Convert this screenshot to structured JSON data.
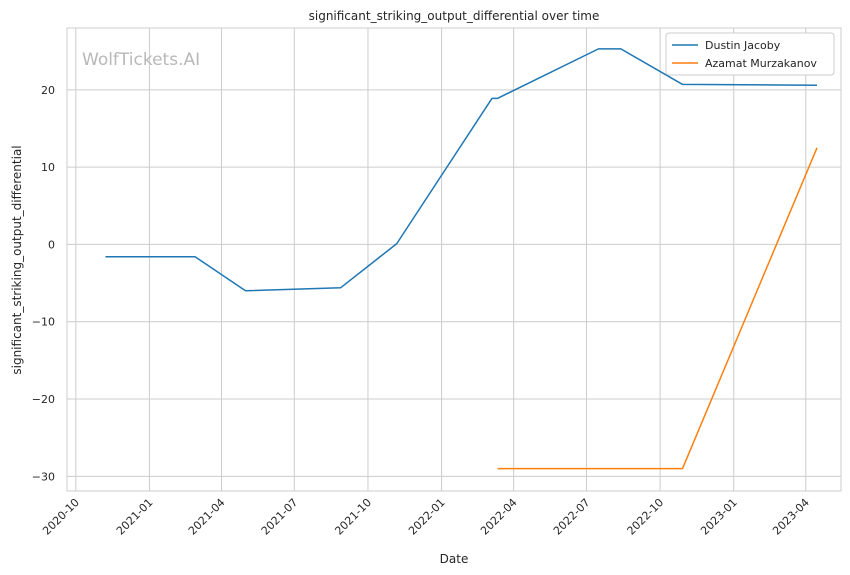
{
  "chart_data": {
    "type": "line",
    "title": "significant_striking_output_differential over time",
    "xlabel": "Date",
    "ylabel": "significant_striking_output_differential",
    "watermark": "WolfTickets.AI",
    "x_ticks": [
      "2020-10",
      "2021-01",
      "2021-04",
      "2021-07",
      "2021-10",
      "2022-01",
      "2022-04",
      "2022-07",
      "2022-10",
      "2023-01",
      "2023-04"
    ],
    "y_ticks": [
      -30,
      -20,
      -10,
      0,
      10,
      20
    ],
    "y_tick_labels": [
      "−30",
      "−20",
      "−10",
      "0",
      "10",
      "20"
    ],
    "xlim": [
      "2020-09-20",
      "2023-05-15"
    ],
    "ylim": [
      -31.9,
      28
    ],
    "grid": true,
    "legend_position": "top-right",
    "series": [
      {
        "name": "Dustin Jacoby",
        "color": "#1f77b4",
        "points": [
          [
            "2020-11-07",
            -1.6
          ],
          [
            "2021-02-27",
            -1.6
          ],
          [
            "2021-05-01",
            -6.0
          ],
          [
            "2021-08-28",
            -5.6
          ],
          [
            "2021-11-06",
            0.1
          ],
          [
            "2022-03-05",
            18.9
          ],
          [
            "2022-03-12",
            18.9
          ],
          [
            "2022-07-16",
            25.3
          ],
          [
            "2022-08-13",
            25.3
          ],
          [
            "2022-10-29",
            20.7
          ],
          [
            "2023-04-15",
            20.6
          ]
        ]
      },
      {
        "name": "Azamat Murzakanov",
        "color": "#ff7f0e",
        "points": [
          [
            "2022-03-12",
            -29.0
          ],
          [
            "2022-10-29",
            -29.0
          ],
          [
            "2023-04-15",
            12.5
          ]
        ]
      }
    ]
  }
}
